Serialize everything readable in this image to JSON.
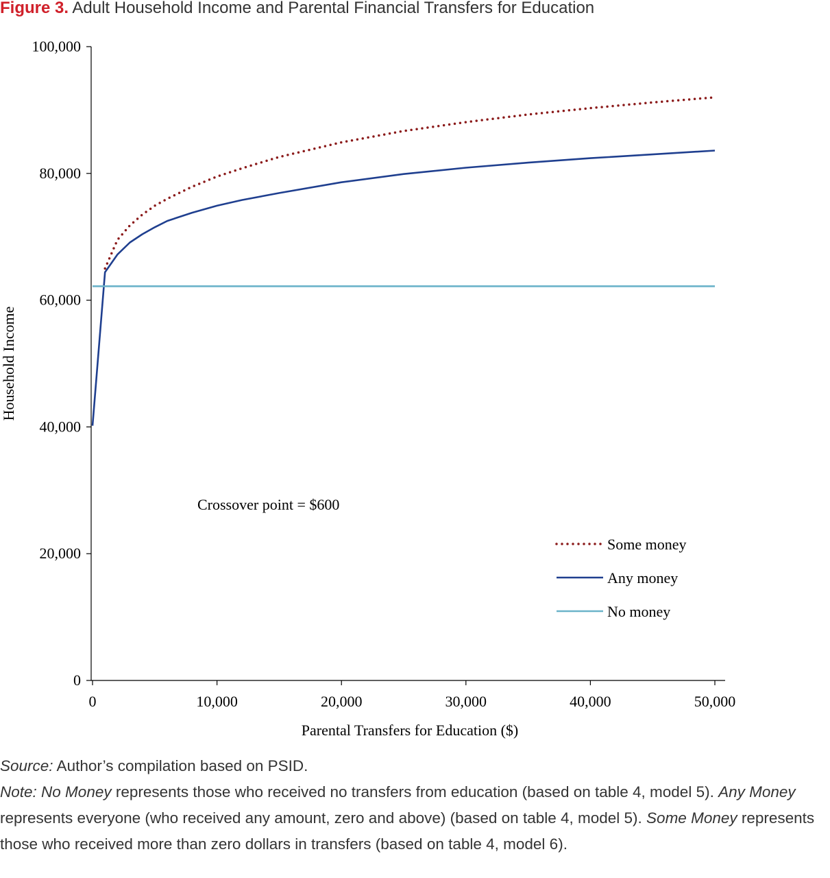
{
  "figure": {
    "label": "Figure 3.",
    "title": "Adult Household Income and Parental Financial Transfers for Education"
  },
  "chart_data": {
    "type": "line",
    "xlabel": "Parental Transfers for Education ($)",
    "ylabel": "Household Income",
    "xlim": [
      0,
      50000
    ],
    "ylim": [
      0,
      100000
    ],
    "x_ticks": [
      "0",
      "10,000",
      "20,000",
      "30,000",
      "40,000",
      "50,000"
    ],
    "y_ticks": [
      "0",
      "20,000",
      "40,000",
      "60,000",
      "80,000",
      "100,000"
    ],
    "grid": false,
    "legend_position": "lower-right",
    "annotation": "Crossover point = $600",
    "series": [
      {
        "name": "Some money",
        "style": "dotted",
        "color": "#8b1a1a",
        "x": [
          1000,
          2000,
          3000,
          4000,
          5000,
          6000,
          8000,
          10000,
          12000,
          15000,
          20000,
          25000,
          30000,
          35000,
          40000,
          45000,
          50000
        ],
        "y": [
          65000,
          69500,
          71800,
          73500,
          74900,
          76000,
          77900,
          79500,
          80800,
          82600,
          84900,
          86700,
          88100,
          89300,
          90300,
          91200,
          92000
        ]
      },
      {
        "name": "Any money",
        "style": "solid",
        "color": "#1f3f8f",
        "x": [
          0,
          1000,
          2000,
          3000,
          4000,
          5000,
          6000,
          8000,
          10000,
          12000,
          15000,
          20000,
          25000,
          30000,
          35000,
          40000,
          45000,
          50000
        ],
        "y": [
          40200,
          64400,
          67200,
          69100,
          70400,
          71500,
          72500,
          73800,
          74900,
          75800,
          76900,
          78600,
          79900,
          80900,
          81700,
          82400,
          83000,
          83600
        ]
      },
      {
        "name": "No money",
        "style": "solid",
        "color": "#6bb3c9",
        "x": [
          0,
          50000
        ],
        "y": [
          62200,
          62200
        ]
      }
    ]
  },
  "notes": {
    "source_label": "Source:",
    "source_text": " Author’s compilation based on PSID.",
    "note_label": "Note:",
    "note_no_money_term": "No Money",
    "note_no_money_text": " represents those who received no transfers from education (based on table 4, model 5). ",
    "note_any_money_term": "Any Money",
    "note_any_money_text": " represents everyone (who received any amount, zero and above) (based on table 4, model 5). ",
    "note_some_money_term": "Some Money",
    "note_some_money_text": " represents those who received more than zero dollars in transfers (based on table 4, model 6)."
  }
}
